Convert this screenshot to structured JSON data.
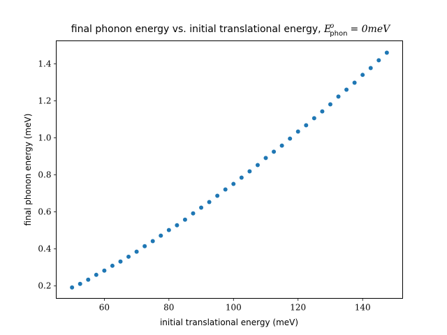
{
  "chart_data": {
    "type": "scatter",
    "title": "final phonon energy vs. initial translational energy, ",
    "title_math": {
      "symbol": "E",
      "superscript": "o",
      "subscript": "phon",
      "rhs": "= 0meV"
    },
    "xlabel": "initial translational energy (meV)",
    "ylabel": "final phonon energy (meV)",
    "xlim": [
      45.1,
      152.4
    ],
    "ylim": [
      0.133,
      1.524
    ],
    "xticks": [
      60,
      80,
      100,
      120,
      140
    ],
    "xtick_labels": [
      "60",
      "80",
      "100",
      "120",
      "140"
    ],
    "yticks": [
      0.2,
      0.4,
      0.6,
      0.8,
      1.0,
      1.2,
      1.4
    ],
    "ytick_labels": [
      "0.2",
      "0.4",
      "0.6",
      "0.8",
      "1.0",
      "1.2",
      "1.4"
    ],
    "grid": false,
    "color": "#1f77b4",
    "series": [
      {
        "name": "final phonon energy",
        "x": [
          50,
          52.5,
          55,
          57.5,
          60,
          62.5,
          65,
          67.5,
          70,
          72.5,
          75,
          77.5,
          80,
          82.5,
          85,
          87.5,
          90,
          92.5,
          95,
          97.5,
          100,
          102.5,
          105,
          107.5,
          110,
          112.5,
          115,
          117.5,
          120,
          122.5,
          125,
          127.5,
          130,
          132.5,
          135,
          137.5,
          140,
          142.5,
          145,
          147.5
        ],
        "y": [
          0.192,
          0.211,
          0.234,
          0.26,
          0.283,
          0.309,
          0.332,
          0.358,
          0.385,
          0.415,
          0.442,
          0.472,
          0.502,
          0.528,
          0.558,
          0.592,
          0.623,
          0.653,
          0.687,
          0.721,
          0.751,
          0.785,
          0.819,
          0.853,
          0.891,
          0.925,
          0.958,
          0.996,
          1.034,
          1.068,
          1.106,
          1.143,
          1.181,
          1.223,
          1.26,
          1.298,
          1.34,
          1.377,
          1.419,
          1.46
        ]
      }
    ]
  }
}
